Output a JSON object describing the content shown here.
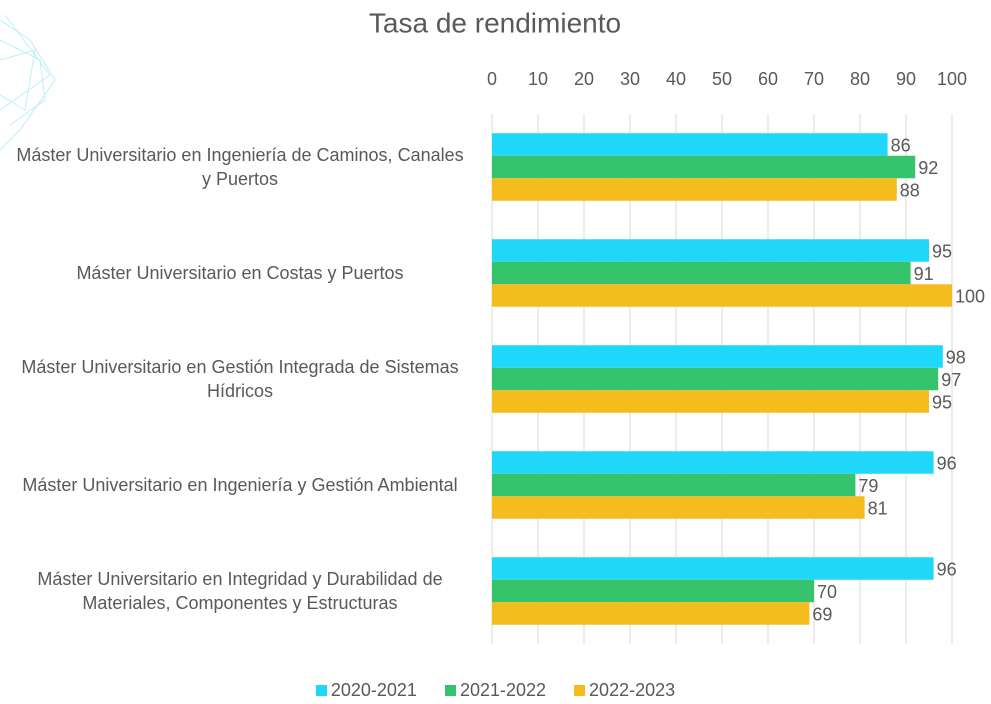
{
  "chart_data": {
    "type": "bar",
    "orientation": "horizontal",
    "title": "Tasa de rendimiento",
    "categories": [
      "Máster Universitario en Ingeniería de Caminos, Canales y Puertos",
      "Máster Universitario en Costas y Puertos",
      "Máster Universitario en Gestión Integrada de Sistemas Hídricos",
      "Máster Universitario en Ingeniería y Gestión Ambiental",
      "Máster Universitario en Integridad y Durabilidad de Materiales, Componentes y Estructuras"
    ],
    "series": [
      {
        "name": "2020-2021",
        "color": "#1fd7f9",
        "values": [
          86,
          95,
          98,
          96,
          96
        ]
      },
      {
        "name": "2021-2022",
        "color": "#35c46c",
        "values": [
          92,
          91,
          97,
          79,
          70
        ]
      },
      {
        "name": "2022-2023",
        "color": "#f4bc1c",
        "values": [
          88,
          100,
          95,
          81,
          69
        ]
      }
    ],
    "xlim": [
      0,
      100
    ],
    "xticks": [
      0,
      10,
      20,
      30,
      40,
      50,
      60,
      70,
      80,
      90,
      100
    ],
    "grid": true
  }
}
